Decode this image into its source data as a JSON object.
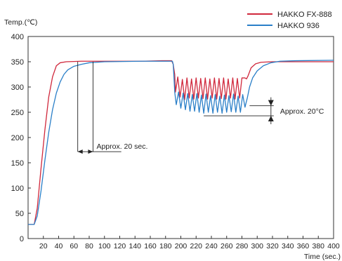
{
  "chart_data": {
    "type": "line",
    "ylabel": "Temp.(℃)",
    "xlabel": "Time (sec.)",
    "xlim": [
      0,
      400
    ],
    "ylim": [
      0,
      400
    ],
    "x_ticks": [
      20,
      40,
      60,
      80,
      100,
      120,
      140,
      160,
      180,
      200,
      220,
      240,
      260,
      280,
      300,
      320,
      340,
      360,
      380,
      400
    ],
    "y_ticks": [
      0,
      50,
      100,
      150,
      200,
      250,
      300,
      350,
      400
    ],
    "grid": false,
    "legend_position": "top-right",
    "series": [
      {
        "name": "HAKKO FX-888",
        "color": "#d0283c",
        "points": [
          [
            0,
            28
          ],
          [
            8,
            28
          ],
          [
            12,
            60
          ],
          [
            17,
            140
          ],
          [
            22,
            215
          ],
          [
            27,
            280
          ],
          [
            32,
            320
          ],
          [
            37,
            342
          ],
          [
            42,
            348
          ],
          [
            50,
            350
          ],
          [
            70,
            351
          ],
          [
            100,
            351
          ],
          [
            150,
            351
          ],
          [
            175,
            352
          ],
          [
            188,
            352
          ],
          [
            190,
            345
          ],
          [
            192,
            325
          ],
          [
            193,
            290
          ],
          [
            196,
            320
          ],
          [
            199,
            280
          ],
          [
            202,
            315
          ],
          [
            205,
            275
          ],
          [
            208,
            318
          ],
          [
            211,
            278
          ],
          [
            214,
            316
          ],
          [
            217,
            276
          ],
          [
            220,
            318
          ],
          [
            223,
            278
          ],
          [
            226,
            317
          ],
          [
            229,
            277
          ],
          [
            232,
            318
          ],
          [
            235,
            276
          ],
          [
            238,
            316
          ],
          [
            241,
            278
          ],
          [
            244,
            318
          ],
          [
            247,
            276
          ],
          [
            250,
            317
          ],
          [
            253,
            277
          ],
          [
            256,
            318
          ],
          [
            259,
            276
          ],
          [
            262,
            316
          ],
          [
            265,
            278
          ],
          [
            268,
            318
          ],
          [
            271,
            276
          ],
          [
            274,
            317
          ],
          [
            277,
            278
          ],
          [
            280,
            318
          ],
          [
            284,
            318
          ],
          [
            286,
            316
          ],
          [
            288,
            322
          ],
          [
            292,
            338
          ],
          [
            298,
            346
          ],
          [
            305,
            349
          ],
          [
            320,
            350
          ],
          [
            350,
            350
          ],
          [
            400,
            350
          ]
        ]
      },
      {
        "name": "HAKKO 936",
        "color": "#2a7fc8",
        "points": [
          [
            0,
            28
          ],
          [
            8,
            28
          ],
          [
            12,
            45
          ],
          [
            17,
            95
          ],
          [
            22,
            155
          ],
          [
            27,
            210
          ],
          [
            32,
            255
          ],
          [
            37,
            288
          ],
          [
            42,
            310
          ],
          [
            47,
            325
          ],
          [
            52,
            334
          ],
          [
            60,
            341
          ],
          [
            70,
            345
          ],
          [
            80,
            348
          ],
          [
            90,
            349
          ],
          [
            100,
            350
          ],
          [
            150,
            351
          ],
          [
            175,
            351
          ],
          [
            189,
            351
          ],
          [
            190,
            345
          ],
          [
            191,
            320
          ],
          [
            192,
            290
          ],
          [
            194,
            265
          ],
          [
            197,
            290
          ],
          [
            200,
            258
          ],
          [
            203,
            288
          ],
          [
            206,
            255
          ],
          [
            209,
            287
          ],
          [
            212,
            252
          ],
          [
            215,
            285
          ],
          [
            218,
            252
          ],
          [
            221,
            287
          ],
          [
            224,
            250
          ],
          [
            227,
            284
          ],
          [
            230,
            248
          ],
          [
            233,
            286
          ],
          [
            236,
            250
          ],
          [
            239,
            283
          ],
          [
            242,
            248
          ],
          [
            245,
            285
          ],
          [
            248,
            250
          ],
          [
            251,
            282
          ],
          [
            254,
            248
          ],
          [
            257,
            284
          ],
          [
            260,
            250
          ],
          [
            263,
            283
          ],
          [
            266,
            251
          ],
          [
            269,
            286
          ],
          [
            272,
            250
          ],
          [
            275,
            282
          ],
          [
            278,
            250
          ],
          [
            281,
            285
          ],
          [
            284,
            260
          ],
          [
            287,
            278
          ],
          [
            290,
            300
          ],
          [
            294,
            318
          ],
          [
            300,
            332
          ],
          [
            308,
            342
          ],
          [
            318,
            348
          ],
          [
            330,
            351
          ],
          [
            350,
            352
          ],
          [
            400,
            353
          ]
        ]
      }
    ],
    "annotations": [
      {
        "text": "Approx. 20 sec.",
        "x_from": 65,
        "x_to": 85,
        "y": 172
      },
      {
        "text": "Approx. 20°C",
        "y_from": 243,
        "y_to": 263,
        "x": 318
      }
    ]
  }
}
